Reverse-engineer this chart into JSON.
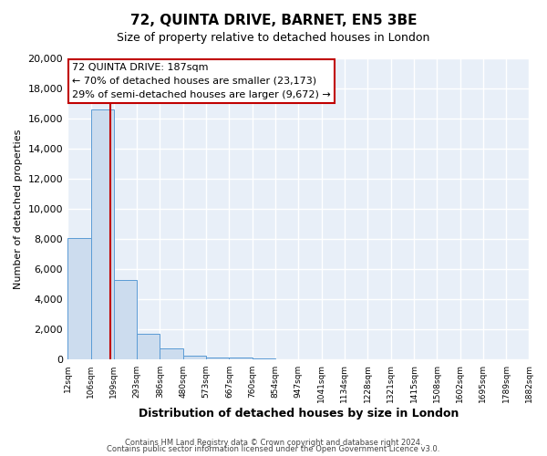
{
  "title": "72, QUINTA DRIVE, BARNET, EN5 3BE",
  "subtitle": "Size of property relative to detached houses in London",
  "xlabel": "Distribution of detached houses by size in London",
  "ylabel": "Number of detached properties",
  "bar_color": "#ccdcee",
  "bar_edge_color": "#5b9bd5",
  "bg_color": "#e8eff8",
  "grid_color": "#ffffff",
  "vline_x": 187,
  "vline_color": "#c00000",
  "bin_edges": [
    12,
    106,
    199,
    293,
    386,
    480,
    573,
    667,
    760,
    854,
    947,
    1041,
    1134,
    1228,
    1321,
    1415,
    1508,
    1602,
    1695,
    1789,
    1882
  ],
  "bin_labels": [
    "12sqm",
    "106sqm",
    "199sqm",
    "293sqm",
    "386sqm",
    "480sqm",
    "573sqm",
    "667sqm",
    "760sqm",
    "854sqm",
    "947sqm",
    "1041sqm",
    "1134sqm",
    "1228sqm",
    "1321sqm",
    "1415sqm",
    "1508sqm",
    "1602sqm",
    "1695sqm",
    "1789sqm",
    "1882sqm"
  ],
  "bar_heights": [
    8100,
    16600,
    5300,
    1750,
    750,
    300,
    175,
    130,
    100,
    50,
    0,
    0,
    0,
    0,
    0,
    0,
    0,
    0,
    0,
    0
  ],
  "ylim": [
    0,
    20000
  ],
  "yticks": [
    0,
    2000,
    4000,
    6000,
    8000,
    10000,
    12000,
    14000,
    16000,
    18000,
    20000
  ],
  "annotation_title": "72 QUINTA DRIVE: 187sqm",
  "annotation_line1": "← 70% of detached houses are smaller (23,173)",
  "annotation_line2": "29% of semi-detached houses are larger (9,672) →",
  "annotation_box_color": "#ffffff",
  "annotation_box_edge": "#c00000",
  "footer1": "Contains HM Land Registry data © Crown copyright and database right 2024.",
  "footer2": "Contains public sector information licensed under the Open Government Licence v3.0."
}
